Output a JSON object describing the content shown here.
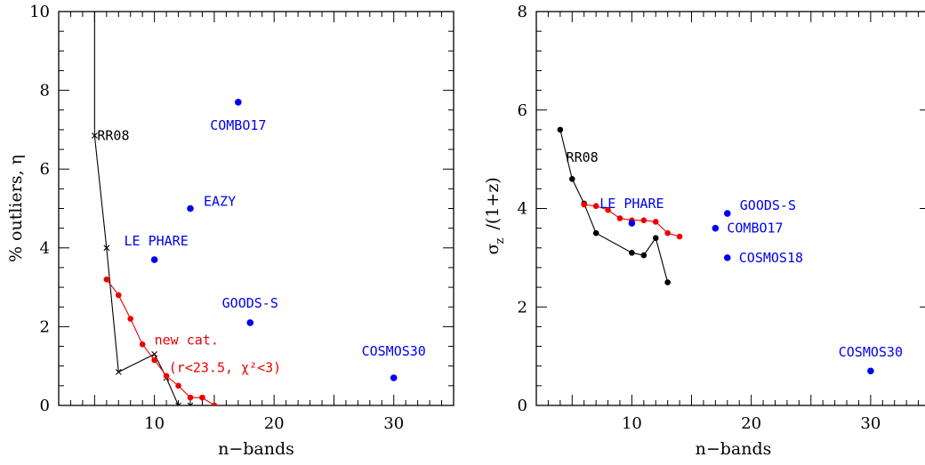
{
  "chart_data": [
    {
      "type": "scatter",
      "xlabel": "n−bands",
      "ylabel": "% outliers, η",
      "xlim": [
        2,
        35
      ],
      "ylim": [
        0,
        10
      ],
      "x_ticks": [
        10,
        20,
        30
      ],
      "y_ticks": [
        0,
        2,
        4,
        6,
        8,
        10
      ],
      "surveys": [
        {
          "label": "COMBO17",
          "x": 17,
          "y": 7.7
        },
        {
          "label": "EAZY",
          "x": 13,
          "y": 5.0
        },
        {
          "label": "LE PHARE",
          "x": 10,
          "y": 3.7
        },
        {
          "label": "GOODS-S",
          "x": 18,
          "y": 2.1
        },
        {
          "label": "COSMOS30",
          "x": 30,
          "y": 0.7
        }
      ],
      "series": [
        {
          "points": [
            [
              5,
              10.6
            ],
            [
              5,
              6.85
            ],
            [
              6,
              4.0
            ],
            [
              7,
              0.85
            ],
            [
              10,
              1.3
            ],
            [
              11,
              0.7
            ],
            [
              12,
              0.0
            ],
            [
              13,
              0.0
            ]
          ]
        },
        {
          "points": [
            [
              6,
              3.2
            ],
            [
              7,
              2.8
            ],
            [
              8,
              2.2
            ],
            [
              9,
              1.55
            ],
            [
              10,
              1.15
            ],
            [
              11,
              0.75
            ],
            [
              12,
              0.5
            ],
            [
              13,
              0.2
            ],
            [
              14,
              0.2
            ],
            [
              15,
              0.0
            ]
          ]
        }
      ],
      "annotations": {
        "rr08": "RR08",
        "newcat": "new cat.",
        "cut": "(r<23.5, χ²<3)"
      }
    },
    {
      "type": "scatter",
      "xlabel": "n−bands",
      "ylabel_main": "σ",
      "ylabel_sub": "z",
      "ylabel_rest": "/(1+z)",
      "xlim": [
        2,
        35
      ],
      "ylim": [
        0,
        8
      ],
      "x_ticks": [
        10,
        20,
        30
      ],
      "y_ticks": [
        0,
        2,
        4,
        6,
        8
      ],
      "surveys": [
        {
          "label": "LE PHARE",
          "x": 10,
          "y": 3.7
        },
        {
          "label": "GOODS-S",
          "x": 18,
          "y": 3.9
        },
        {
          "label": "COMBO17",
          "x": 17,
          "y": 3.6
        },
        {
          "label": "COSMOS18",
          "x": 18,
          "y": 3.0
        },
        {
          "label": "COSMOS30",
          "x": 30,
          "y": 0.7
        }
      ],
      "series": [
        {
          "points": [
            [
              4,
              5.6
            ],
            [
              5,
              4.6
            ],
            [
              6,
              4.1
            ],
            [
              7,
              3.5
            ],
            [
              10,
              3.1
            ],
            [
              11,
              3.05
            ],
            [
              12,
              3.4
            ],
            [
              13,
              2.5
            ]
          ]
        },
        {
          "points": [
            [
              6,
              4.08
            ],
            [
              7,
              4.05
            ],
            [
              8,
              3.97
            ],
            [
              9,
              3.8
            ],
            [
              10,
              3.76
            ],
            [
              11,
              3.76
            ],
            [
              12,
              3.73
            ],
            [
              13,
              3.5
            ],
            [
              14,
              3.43
            ]
          ]
        }
      ],
      "annotations": {
        "rr08": "RR08"
      }
    }
  ],
  "colors": {
    "survey": "#0000ee",
    "new_catalog": "#ee0000",
    "rr08": "#000000",
    "axis": "#000000"
  }
}
